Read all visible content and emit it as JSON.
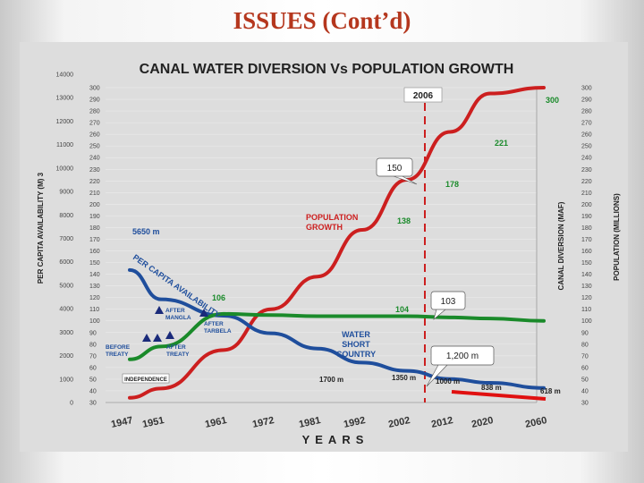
{
  "slide": {
    "title": "ISSUES (Cont’d)"
  },
  "chart_data": {
    "type": "line",
    "title": "CANAL WATER DIVERSION Vs POPULATION GROWTH",
    "xlabel": "YEARS",
    "y_left_outer_label": "PER CAPITA AVAILABILITY (M) 3",
    "y_right_inner_label": "CANAL DIVERSION (MAF)",
    "y_right_outer_label": "POPULATION (MILLIONS)",
    "x_ticks": [
      "1947",
      "1951",
      "1961",
      "1972",
      "1981",
      "1992",
      "2002",
      "2012",
      "2020",
      "2060"
    ],
    "y_left_outer_ticks": [
      "14000",
      "13000",
      "12000",
      "11000",
      "10000",
      "9000",
      "8000",
      "7000",
      "6000",
      "5000",
      "4000",
      "3000",
      "2000",
      "1000",
      "0"
    ],
    "y_inner_ticks": [
      "300",
      "290",
      "280",
      "270",
      "260",
      "250",
      "240",
      "230",
      "220",
      "210",
      "200",
      "190",
      "180",
      "170",
      "160",
      "150",
      "140",
      "130",
      "120",
      "110",
      "100",
      "90",
      "80",
      "70",
      "60",
      "50",
      "40",
      "30"
    ],
    "y_right_ticks": [
      "300",
      "290",
      "280",
      "270",
      "260",
      "250",
      "240",
      "230",
      "220",
      "210",
      "200",
      "190",
      "180",
      "170",
      "160",
      "150",
      "140",
      "130",
      "120",
      "110",
      "100",
      "90",
      "80",
      "70",
      "60",
      "50",
      "40",
      "30"
    ],
    "series": [
      {
        "name": "POPULATION GROWTH",
        "color": "#cc1f1f",
        "x": [
          "1947",
          "1951",
          "1961",
          "1972",
          "1981",
          "1992",
          "2002",
          "2012",
          "2020",
          "2060"
        ],
        "y": [
          34,
          42,
          75,
          110,
          138,
          178,
          221,
          262,
          295,
          300
        ]
      },
      {
        "name": "PER CAPITA AVAILABILITY",
        "color": "#1f4e9c",
        "x": [
          "1947",
          "1951",
          "1961",
          "1972",
          "1981",
          "1992",
          "2002",
          "2012",
          "2020",
          "2060"
        ],
        "y": [
          5650,
          4400,
          3700,
          2950,
          2300,
          1700,
          1350,
          1000,
          838,
          618
        ]
      },
      {
        "name": "CANAL DIVERSION",
        "color": "#1a8a2a",
        "x": [
          "1947",
          "1951",
          "1961",
          "1972",
          "1981",
          "1992",
          "2002",
          "2012",
          "2020",
          "2060"
        ],
        "y": [
          67,
          78,
          106,
          105,
          104,
          104,
          104,
          103,
          102,
          100
        ]
      }
    ],
    "annotations": {
      "year_2006": "2006",
      "pop_300": "300",
      "pop_221": "221",
      "pop_178": "178",
      "pop_138": "138",
      "pop_106": "106",
      "pop_104": "104",
      "callout_150": "150",
      "callout_103": "103",
      "callout_1200": "1,200 m",
      "start_availability": "5650 m",
      "pc_label": "PER CAPITA AVAILABILITY",
      "pop_label_1": "POPULATION",
      "pop_label_2": "GROWTH",
      "water_short_1": "WATER",
      "water_short_2": "SHORT",
      "water_short_3": "COUNTRY",
      "independence": "INDEPENDENCE",
      "before_treaty_1": "BEFORE",
      "before_treaty_2": "TREATY",
      "after_treaty_1": "AFTER",
      "after_treaty_2": "TREATY",
      "after_mangla_1": "AFTER",
      "after_mangla_2": "MANGLA",
      "after_tarbela_1": "AFTER",
      "after_tarbela_2": "TARBELA",
      "v1700": "1700 m",
      "v1350": "1350 m",
      "v1000": "1000 m",
      "v838": "838 m",
      "v618": "618 m"
    }
  }
}
